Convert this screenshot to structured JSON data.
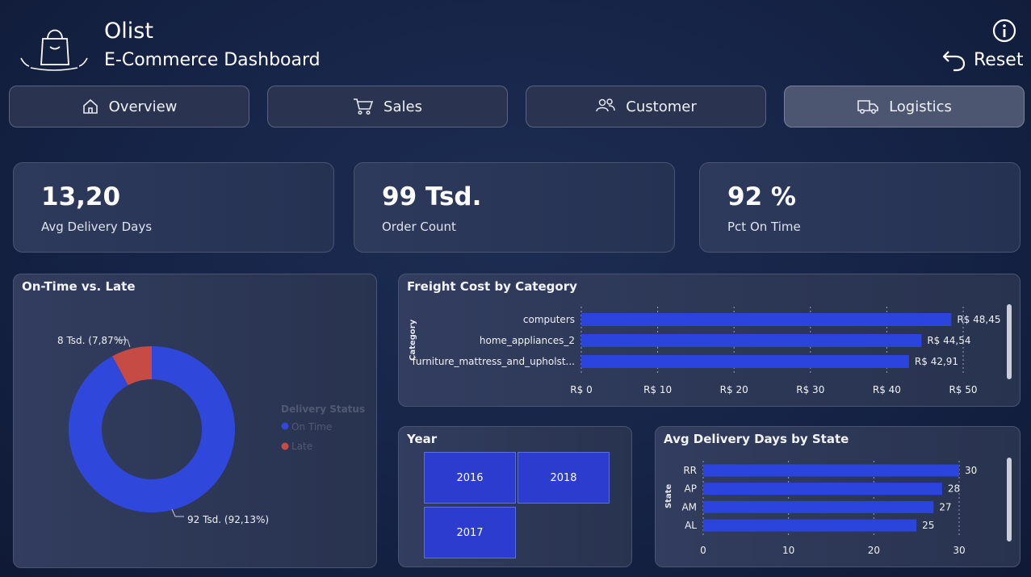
{
  "header": {
    "brand": "Olist",
    "subtitle": "E-Commerce Dashboard",
    "reset_label": "Reset",
    "info_icon": "info-icon",
    "reset_icon": "undo-arrow-icon"
  },
  "nav": [
    {
      "label": "Overview",
      "icon": "home-icon",
      "active": false
    },
    {
      "label": "Sales",
      "icon": "cart-icon",
      "active": false
    },
    {
      "label": "Customer",
      "icon": "users-icon",
      "active": false
    },
    {
      "label": "Logistics",
      "icon": "truck-icon",
      "active": true
    }
  ],
  "kpis": [
    {
      "value": "13,20",
      "label": "Avg Delivery Days"
    },
    {
      "value": "99 Tsd.",
      "label": "Order Count"
    },
    {
      "value": "92 %",
      "label": "Pct On Time"
    }
  ],
  "donut": {
    "title": "On-Time vs. Late",
    "legend_title": "Delivery Status",
    "late_label": "8 Tsd. (7,87%)",
    "ontime_label": "92 Tsd. (92,13%)"
  },
  "freight": {
    "title": "Freight Cost by Category",
    "axis_label": "Category"
  },
  "year": {
    "title": "Year",
    "tiles": [
      "2016",
      "2018",
      "2017"
    ]
  },
  "state": {
    "title": "Avg Delivery Days by State",
    "axis_label": "State"
  },
  "colors": {
    "bar": "#2b44dd",
    "ontime": "#2f48db",
    "late": "#c64b45"
  },
  "chart_data": [
    {
      "type": "pie",
      "title": "On-Time vs. Late",
      "categories": [
        "On Time",
        "Late"
      ],
      "values": [
        92.13,
        7.87
      ],
      "data_labels": [
        "92 Tsd. (92,13%)",
        "8 Tsd. (7,87%)"
      ],
      "legend_title": "Delivery Status",
      "legend_position": "right"
    },
    {
      "type": "bar",
      "orientation": "horizontal",
      "title": "Freight Cost by Category",
      "ylabel": "Category",
      "categories": [
        "computers",
        "home_appliances_2",
        "furniture_mattress_and_upholst..."
      ],
      "values": [
        48.45,
        44.54,
        42.91
      ],
      "data_labels": [
        "R$ 48,45",
        "R$ 44,54",
        "R$ 42,91"
      ],
      "xlim": [
        0,
        50
      ],
      "xticks": [
        0,
        10,
        20,
        30,
        40,
        50
      ],
      "xtick_labels": [
        "R$ 0",
        "R$ 10",
        "R$ 20",
        "R$ 30",
        "R$ 40",
        "R$ 50"
      ],
      "grid": true
    },
    {
      "type": "bar",
      "orientation": "horizontal",
      "title": "Avg Delivery Days by State",
      "ylabel": "State",
      "categories": [
        "RR",
        "AP",
        "AM",
        "AL"
      ],
      "values": [
        30,
        28,
        27,
        25
      ],
      "data_labels": [
        "30",
        "28",
        "27",
        "25"
      ],
      "xlim": [
        0,
        30
      ],
      "xticks": [
        0,
        10,
        20,
        30
      ],
      "xtick_labels": [
        "0",
        "10",
        "20",
        "30"
      ],
      "grid": true
    }
  ]
}
